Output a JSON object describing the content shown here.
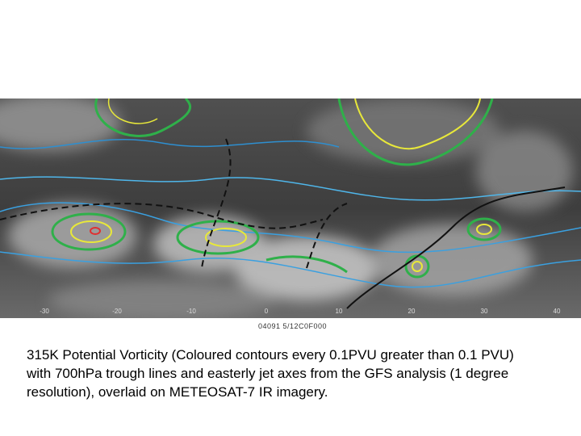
{
  "image": {
    "longitude_labels": [
      "-30",
      "-20",
      "-10",
      "0",
      "10",
      "20",
      "30",
      "40"
    ],
    "stamp": "04091 5/12C0F000"
  },
  "caption": {
    "lines": [
      "315K Potential Vorticity (Coloured contours every 0.1PVU greater than 0.1 PVU)",
      "with 700hPa trough lines and easterly jet axes from the GFS analysis (1 degree",
      "resolution), overlaid on METEOSAT-7 IR imagery."
    ]
  }
}
